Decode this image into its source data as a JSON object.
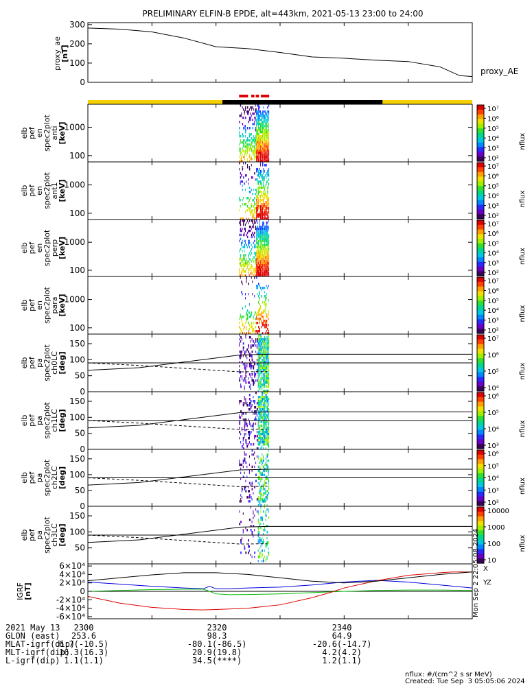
{
  "title": "PRELIMINARY ELFIN-B EPDE, alt=443km, 2021-05-13 23:00 to 24:00",
  "colors": {
    "sunlight": "#f5d000",
    "eclipse": "#000000",
    "science_zone": "#e00000",
    "igrf_x": "#0000dd",
    "igrf_y": "#00bb00",
    "igrf_z": "#dd0000"
  },
  "chart_data": [
    {
      "type": "line",
      "name": "proxy_ae",
      "ylabel": [
        "proxy_ae",
        "[nT]"
      ],
      "legend": "proxy_AE",
      "ylim": [
        0,
        310
      ],
      "yticks": [
        0,
        100,
        200,
        300
      ],
      "x": [
        0,
        5,
        10,
        15,
        20,
        25,
        30,
        35,
        40,
        45,
        50,
        55,
        58,
        60
      ],
      "values": [
        282,
        276,
        262,
        230,
        185,
        175,
        155,
        132,
        125,
        115,
        108,
        80,
        35,
        30
      ]
    },
    {
      "type": "heatmap",
      "name": "ant",
      "ylabel": [
        "elb",
        "pef",
        "en",
        "spec2plot",
        "anti",
        "[keV]"
      ],
      "yscale": "log",
      "ylim": [
        60,
        6500
      ],
      "yticks": [
        100,
        1000
      ],
      "ytick_labels": [
        "100",
        "1000"
      ],
      "colorbar": {
        "label": "nflux",
        "ticks": [
          "10²",
          "10³",
          "10⁴",
          "10⁵",
          "10⁶",
          "10⁷"
        ]
      }
    },
    {
      "type": "heatmap",
      "name": "ant1",
      "ylabel": [
        "elb",
        "pef",
        "en",
        "spec2plot",
        "ant1",
        "[keV]"
      ],
      "yscale": "log",
      "ylim": [
        60,
        6500
      ],
      "yticks": [
        100,
        1000
      ],
      "ytick_labels": [
        "100",
        "1000"
      ],
      "colorbar": {
        "label": "nflux",
        "ticks": [
          "10²",
          "10³",
          "10⁴",
          "10⁵",
          "10⁶",
          "10⁷"
        ]
      }
    },
    {
      "type": "heatmap",
      "name": "perp",
      "ylabel": [
        "elb",
        "pef",
        "en",
        "spec2plot",
        "perp",
        "[keV]"
      ],
      "yscale": "log",
      "ylim": [
        60,
        6500
      ],
      "yticks": [
        100,
        1000
      ],
      "ytick_labels": [
        "100",
        "1000"
      ],
      "colorbar": {
        "label": "nflux",
        "ticks": [
          "10²",
          "10³",
          "10⁴",
          "10⁵",
          "10⁶",
          "10⁷"
        ]
      }
    },
    {
      "type": "heatmap",
      "name": "para",
      "ylabel": [
        "elb",
        "pef",
        "en",
        "spec2plot",
        "para",
        "[keV]"
      ],
      "yscale": "log",
      "ylim": [
        60,
        6500
      ],
      "yticks": [
        100,
        1000
      ],
      "ytick_labels": [
        "100",
        "1000"
      ],
      "colorbar": {
        "label": "nflux",
        "ticks": [
          "10²",
          "10³",
          "10⁴",
          "10⁵",
          "10⁶",
          "10⁷"
        ]
      }
    },
    {
      "type": "heatmap",
      "name": "ch0LC",
      "ylabel": [
        "elb",
        "pef",
        "pa",
        "spec2plot",
        "ch0LC",
        "[deg]"
      ],
      "ylim": [
        0,
        180
      ],
      "yticks": [
        0,
        50,
        100,
        150
      ],
      "ytick_labels": [
        "0",
        "50",
        "100",
        "150"
      ],
      "colorbar": {
        "label": "nflux",
        "ticks": [
          "10⁴",
          "10⁵",
          "10⁶",
          "10⁷"
        ]
      }
    },
    {
      "type": "heatmap",
      "name": "ch1LC",
      "ylabel": [
        "elb",
        "pef",
        "pa",
        "spec2plot",
        "ch1LC",
        "[deg]"
      ],
      "ylim": [
        0,
        180
      ],
      "yticks": [
        0,
        50,
        100,
        150
      ],
      "ytick_labels": [
        "0",
        "50",
        "100",
        "150"
      ],
      "colorbar": {
        "label": "nflux",
        "ticks": [
          "10³",
          "10⁴",
          "10⁵",
          "10⁶"
        ]
      }
    },
    {
      "type": "heatmap",
      "name": "ch2LC",
      "ylabel": [
        "elb",
        "pef",
        "pa",
        "spec2plot",
        "ch2LC",
        "[deg]"
      ],
      "ylim": [
        0,
        180
      ],
      "yticks": [
        0,
        50,
        100,
        150
      ],
      "ytick_labels": [
        "0",
        "50",
        "100",
        "150"
      ],
      "colorbar": {
        "label": "nflux",
        "ticks": [
          "10²",
          "10³",
          "10⁴",
          "10⁵",
          "10⁶"
        ]
      }
    },
    {
      "type": "heatmap",
      "name": "ch3LC",
      "ylabel": [
        "elb",
        "pef",
        "pa",
        "spec2plot",
        "ch3LC",
        "[deg]"
      ],
      "ylim": [
        0,
        180
      ],
      "yticks": [
        50,
        100,
        150
      ],
      "ytick_labels": [
        "50",
        "100",
        "150"
      ],
      "colorbar": {
        "label": "nflux",
        "ticks": [
          "10",
          "100",
          "1000",
          "10000"
        ]
      }
    },
    {
      "type": "line",
      "name": "IGRF",
      "ylabel": [
        "IGRF",
        "[nT]"
      ],
      "ylim": [
        -65000,
        65000
      ],
      "yticks": [
        -60000,
        -40000,
        -20000,
        0,
        20000,
        40000,
        60000
      ],
      "ytick_labels": [
        "-6×10⁴",
        "-4×10⁴",
        "-2×10⁴",
        "0",
        "2×10⁴",
        "4×10⁴",
        "6×10⁴"
      ],
      "legend": [
        "X",
        "Y",
        "Z"
      ],
      "side_text": "Mon Sep  2 22:05:08 2024",
      "series": [
        {
          "name": "X",
          "x": [
            0,
            5,
            10,
            15,
            18,
            19,
            20,
            22,
            25,
            30,
            35,
            40,
            45,
            50,
            55,
            60
          ],
          "values": [
            22000,
            17000,
            12000,
            8000,
            6000,
            12000,
            6000,
            6000,
            8000,
            10000,
            15000,
            22000,
            26000,
            22000,
            15000,
            8000
          ]
        },
        {
          "name": "Y",
          "x": [
            0,
            5,
            10,
            15,
            18,
            19,
            20,
            22,
            25,
            30,
            35,
            40,
            45,
            50,
            55,
            60
          ],
          "values": [
            0,
            2000,
            4000,
            5000,
            5000,
            0,
            -6000,
            -8000,
            -7500,
            -6000,
            -3000,
            0,
            2000,
            3000,
            3000,
            2000
          ]
        },
        {
          "name": "Z",
          "x": [
            0,
            5,
            10,
            15,
            18,
            20,
            25,
            30,
            35,
            38,
            40,
            45,
            50,
            55,
            57,
            60
          ],
          "values": [
            -12000,
            -28000,
            -38000,
            -43000,
            -44000,
            -43000,
            -40000,
            -32000,
            -15000,
            -2000,
            8000,
            25000,
            38000,
            44000,
            46000,
            46000
          ]
        },
        {
          "name": "black",
          "x": [
            0,
            5,
            10,
            15,
            20,
            25,
            30,
            35,
            40,
            45,
            50,
            55,
            60
          ],
          "values": [
            25000,
            32000,
            39000,
            44000,
            44000,
            40000,
            32000,
            24000,
            20000,
            24000,
            32000,
            40000,
            46000
          ]
        }
      ]
    }
  ],
  "x_axis": {
    "ticks": [
      {
        "t": 0,
        "label": "2300"
      },
      {
        "t": 20,
        "label": "2320"
      },
      {
        "t": 40,
        "label": "2340"
      }
    ]
  },
  "footer": {
    "rows": [
      {
        "label": "2021 May 13",
        "values": [
          "2300",
          "2320",
          "2340"
        ]
      },
      {
        "label": "GLON (east)",
        "values": [
          "253.6",
          "98.3",
          "64.9"
        ]
      },
      {
        "label": "MLAT-igrf(dip)",
        "values": [
          "6.7(-10.5)",
          "-80.1(-86.5)",
          "-20.6(-14.7)"
        ]
      },
      {
        "label": "MLT-igrf(dip)",
        "values": [
          "16.3(16.3)",
          "20.9(19.8)",
          "4.2(4.2)"
        ]
      },
      {
        "label": "L-igrf(dip)",
        "values": [
          "1.1(1.1)",
          "34.5(****)",
          "1.2(1.1)"
        ]
      }
    ],
    "units": "nflux: #/(cm^2 s sr MeV)",
    "created": "Created: Tue Sep  3 05:05:06 2024"
  }
}
